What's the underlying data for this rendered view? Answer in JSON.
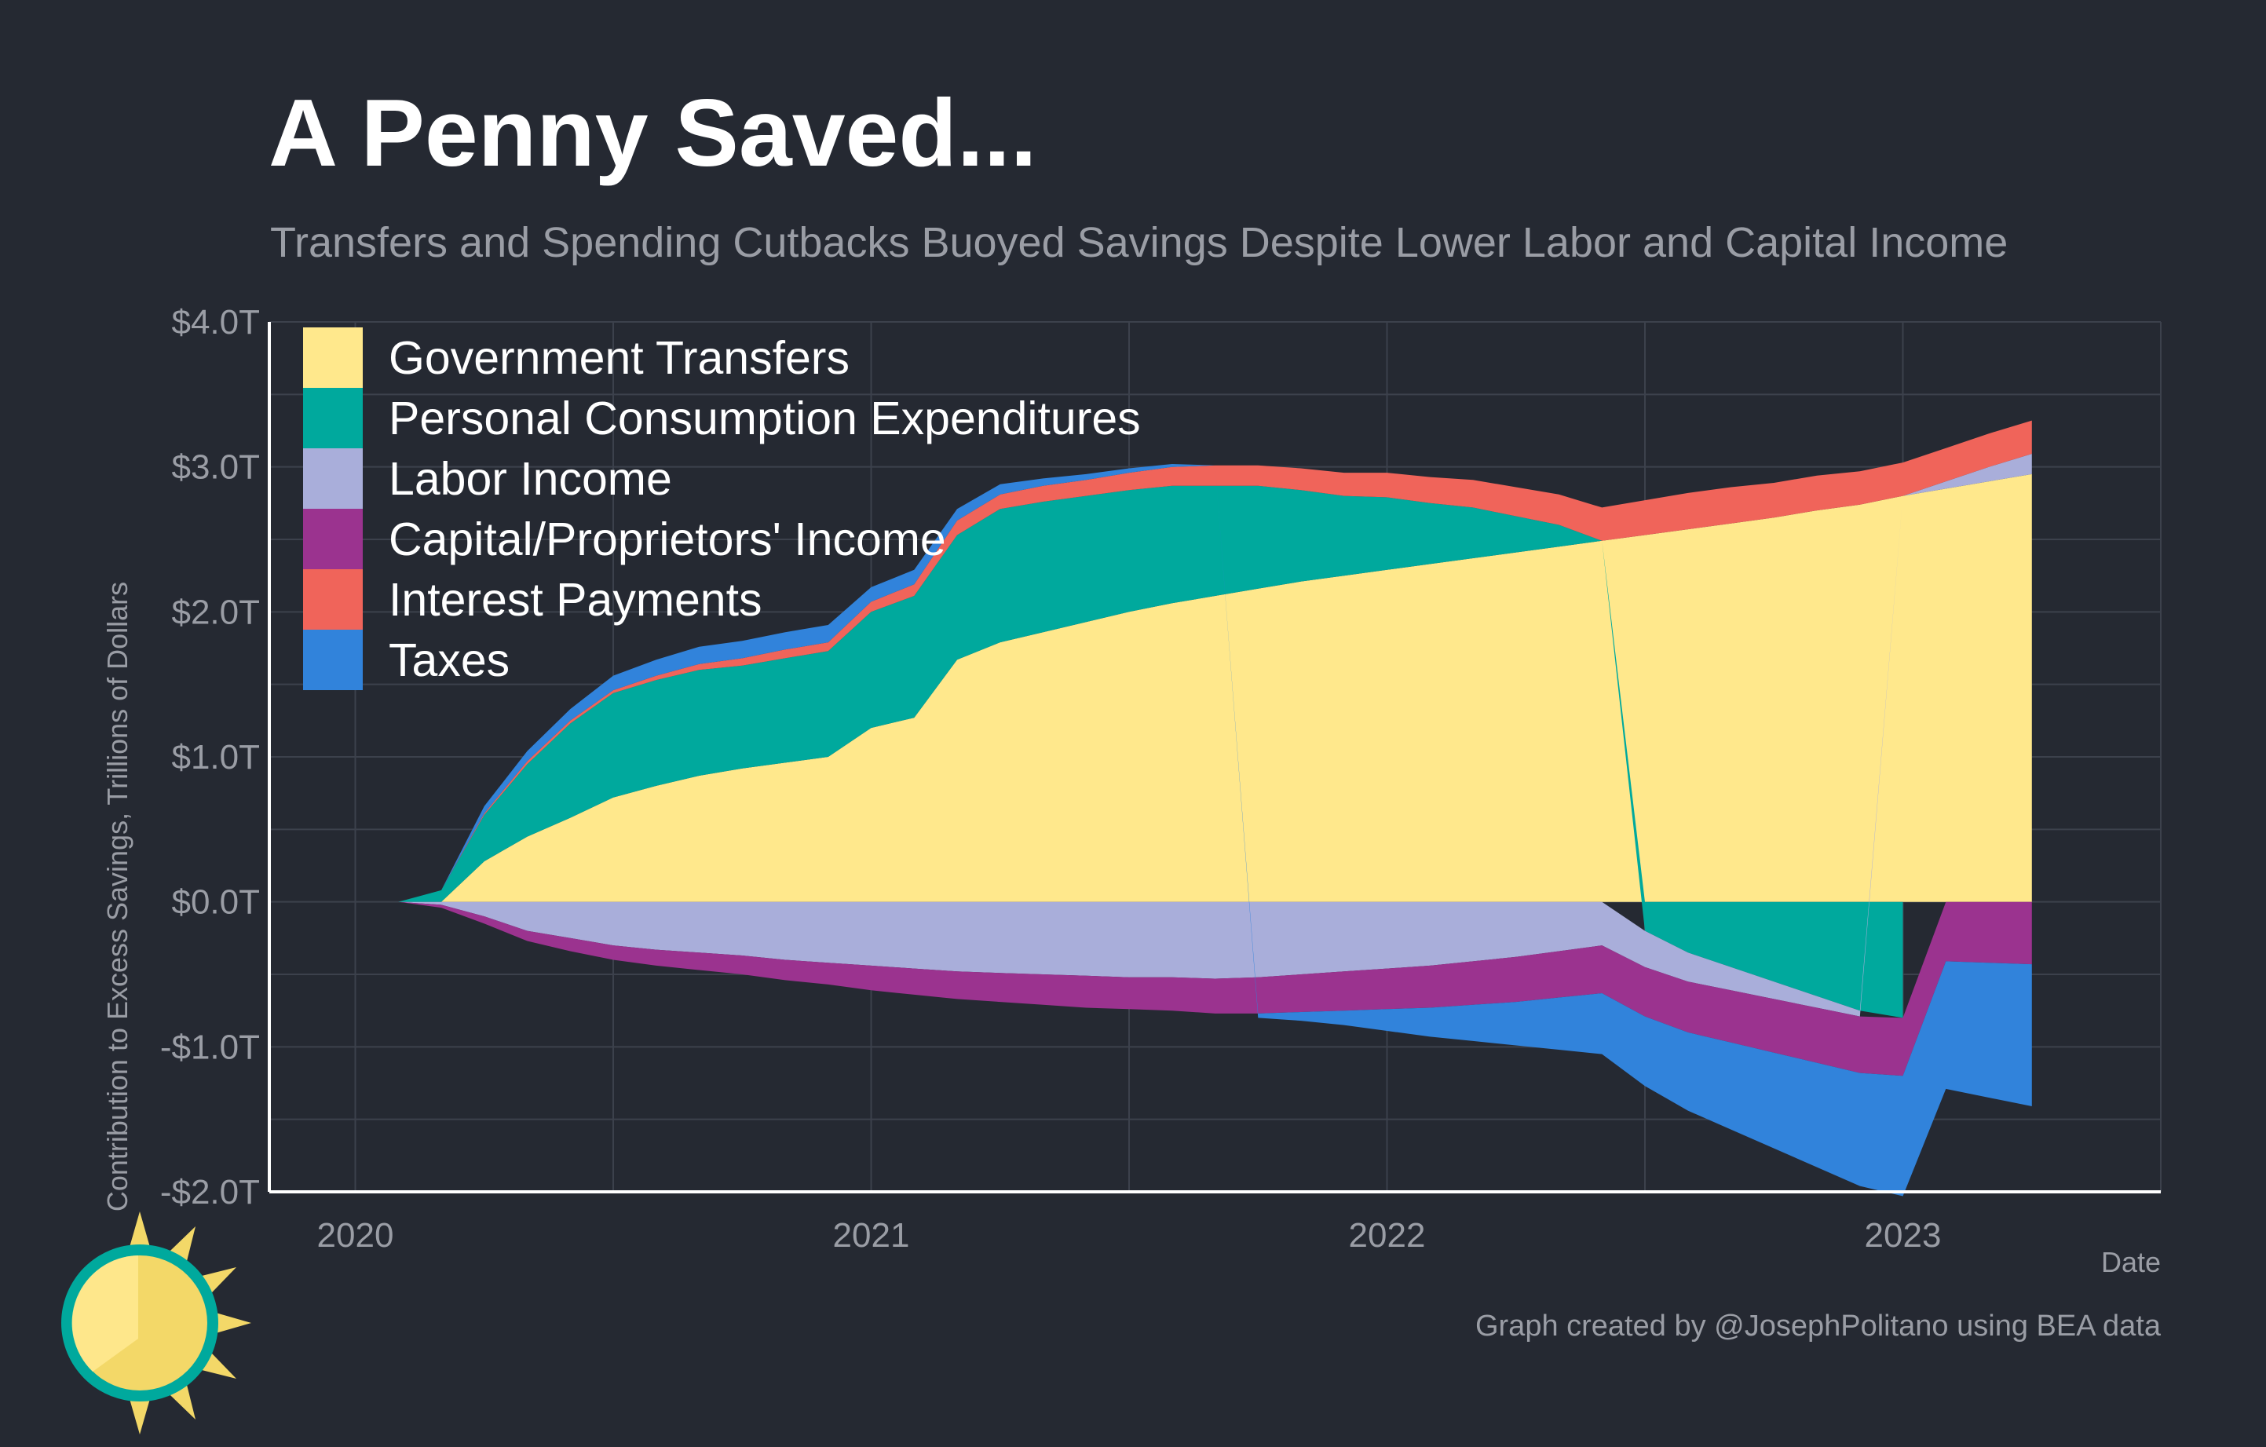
{
  "page": {
    "title": "A Penny Saved...",
    "subtitle": "Transfers and Spending Cutbacks Buoyed Savings Despite Lower Labor and Capital Income",
    "caption": "Graph created by @JosephPolitano using BEA data",
    "logo_icon": "sun-icon"
  },
  "chart_data": {
    "type": "area",
    "stacked": true,
    "x_unit": "month",
    "x": [
      "2020-01",
      "2020-02",
      "2020-03",
      "2020-04",
      "2020-05",
      "2020-06",
      "2020-07",
      "2020-08",
      "2020-09",
      "2020-10",
      "2020-11",
      "2020-12",
      "2021-01",
      "2021-02",
      "2021-03",
      "2021-04",
      "2021-05",
      "2021-06",
      "2021-07",
      "2021-08",
      "2021-09",
      "2021-10",
      "2021-11",
      "2021-12",
      "2022-01",
      "2022-02",
      "2022-03",
      "2022-04",
      "2022-05",
      "2022-06",
      "2022-07",
      "2022-08",
      "2022-09",
      "2022-10",
      "2022-11",
      "2022-12",
      "2023-01",
      "2023-02",
      "2023-03",
      "2023-04"
    ],
    "series": [
      {
        "name": "Government Transfers",
        "color": "#FFE88C",
        "values": [
          0,
          0,
          0,
          0.28,
          0.45,
          0.58,
          0.72,
          0.8,
          0.87,
          0.92,
          0.96,
          1.0,
          1.2,
          1.27,
          1.67,
          1.79,
          1.86,
          1.93,
          2.0,
          2.06,
          2.11,
          2.16,
          2.21,
          2.25,
          2.29,
          2.33,
          2.37,
          2.41,
          2.45,
          2.49,
          2.53,
          2.57,
          2.61,
          2.65,
          2.7,
          2.74,
          2.8,
          2.85,
          2.9,
          2.95
        ]
      },
      {
        "name": "Personal Consumption Expenditures",
        "color": "#00A99D",
        "values": [
          0,
          0,
          0.08,
          0.32,
          0.5,
          0.65,
          0.72,
          0.73,
          0.73,
          0.71,
          0.72,
          0.73,
          0.8,
          0.84,
          0.86,
          0.92,
          0.9,
          0.87,
          0.84,
          0.81,
          0.76,
          0.71,
          0.63,
          0.55,
          0.5,
          0.42,
          0.35,
          0.25,
          0.15,
          0.0,
          -0.2,
          -0.35,
          -0.45,
          -0.55,
          -0.65,
          -0.75,
          -0.8,
          null,
          null,
          null
        ]
      },
      {
        "name": "Labor Income",
        "color": "#A9AEDA",
        "values": [
          0,
          0,
          -0.02,
          -0.1,
          -0.2,
          -0.25,
          -0.3,
          -0.33,
          -0.35,
          -0.37,
          -0.4,
          -0.42,
          -0.44,
          -0.46,
          -0.48,
          -0.49,
          -0.5,
          -0.51,
          -0.52,
          -0.52,
          -0.53,
          -0.52,
          -0.5,
          -0.48,
          -0.46,
          -0.44,
          -0.41,
          -0.38,
          -0.34,
          -0.3,
          -0.25,
          -0.2,
          -0.16,
          -0.12,
          -0.08,
          -0.04,
          0.0,
          0.05,
          0.1,
          0.14
        ]
      },
      {
        "name": "Capital/Proprietors' Income",
        "color": "#9B338F",
        "values": [
          0,
          0,
          -0.02,
          -0.05,
          -0.07,
          -0.09,
          -0.1,
          -0.11,
          -0.12,
          -0.13,
          -0.14,
          -0.15,
          -0.17,
          -0.18,
          -0.19,
          -0.2,
          -0.21,
          -0.22,
          -0.22,
          -0.23,
          -0.24,
          -0.25,
          -0.26,
          -0.27,
          -0.28,
          -0.29,
          -0.3,
          -0.31,
          -0.32,
          -0.33,
          -0.34,
          -0.35,
          -0.36,
          -0.37,
          -0.38,
          -0.39,
          -0.4,
          -0.41,
          -0.42,
          -0.43
        ]
      },
      {
        "name": "Interest Payments",
        "color": "#F0645A",
        "values": [
          0,
          0,
          0,
          0.01,
          0.02,
          0.02,
          0.02,
          0.03,
          0.04,
          0.05,
          0.06,
          0.06,
          0.07,
          0.08,
          0.1,
          0.1,
          0.11,
          0.11,
          0.12,
          0.13,
          0.14,
          0.14,
          0.15,
          0.16,
          0.17,
          0.18,
          0.19,
          0.2,
          0.21,
          0.23,
          0.24,
          0.25,
          0.25,
          0.24,
          0.24,
          0.23,
          0.23,
          0.23,
          0.23,
          0.23
        ]
      },
      {
        "name": "Taxes",
        "color": "#3183DB",
        "values": [
          0,
          0,
          0,
          0.05,
          0.07,
          0.08,
          0.1,
          0.11,
          0.12,
          0.12,
          0.12,
          0.12,
          0.1,
          0.1,
          0.08,
          0.07,
          0.05,
          0.04,
          0.03,
          0.02,
          0.0,
          -0.03,
          -0.06,
          -0.1,
          -0.15,
          -0.2,
          -0.25,
          -0.3,
          -0.36,
          -0.42,
          -0.48,
          -0.54,
          -0.6,
          -0.66,
          -0.72,
          -0.78,
          -0.83,
          -0.88,
          -0.93,
          -0.98
        ]
      }
    ],
    "xlabel": "Date",
    "ylabel": "Contribution to Excess Savings, Trillions of Dollars",
    "ylim": [
      -2.0,
      4.0
    ],
    "yticks": [
      -2,
      -1,
      0,
      1,
      2,
      3,
      4
    ],
    "ytick_labels": [
      "-$2.0T",
      "-$1.0T",
      "$0.0T",
      "$1.0T",
      "$2.0T",
      "$3.0T",
      "$4.0T"
    ],
    "xlim": [
      "2019-11",
      "2023-07"
    ],
    "xticks": [
      "2020-01",
      "2021-01",
      "2022-01",
      "2023-01"
    ],
    "xtick_labels": [
      "2020",
      "2021",
      "2022",
      "2023"
    ],
    "grid": true,
    "legend_position": "top-left"
  }
}
